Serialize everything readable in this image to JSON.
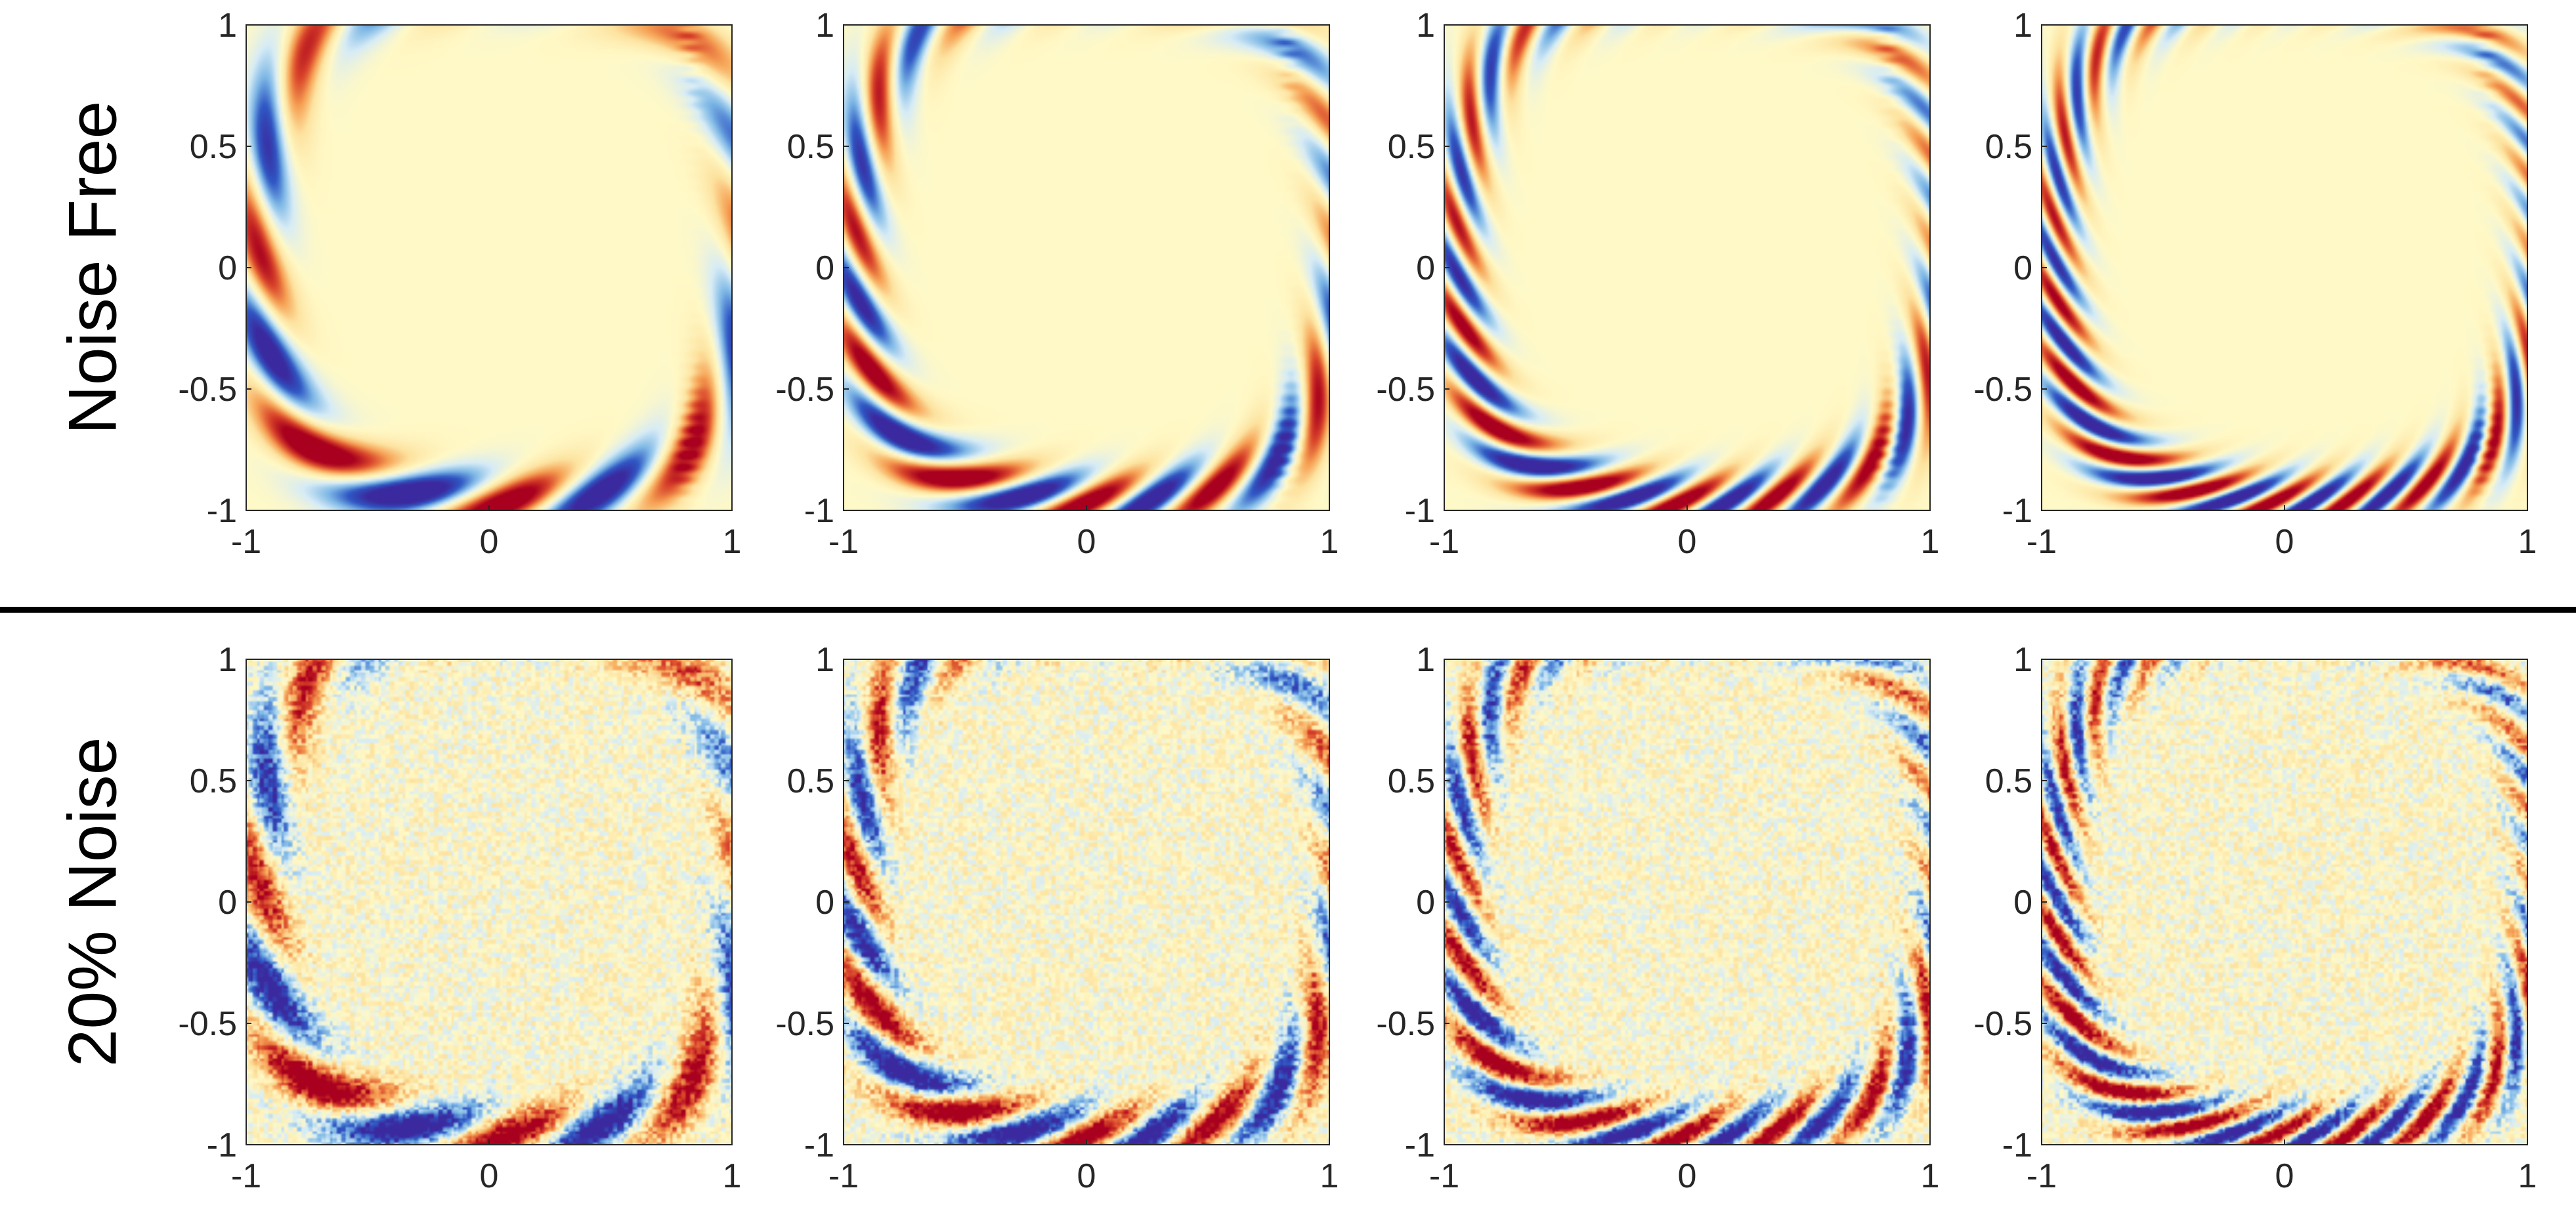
{
  "rows": [
    {
      "label": "Noise Free",
      "noise": 0.0
    },
    {
      "label": "20% Noise",
      "noise": 0.2
    }
  ],
  "colors": {
    "colormap": [
      "#3b2a9f",
      "#2f58c4",
      "#7eb8e6",
      "#d7ecf6",
      "#fff9c7",
      "#fde3a0",
      "#f6a255",
      "#d9452a",
      "#a8001e"
    ],
    "background": "#fff7c4",
    "divider": "#000000",
    "axis": "#262626"
  },
  "chart_data": [
    {
      "type": "heatmap",
      "row": "Noise Free",
      "panel": 1,
      "xlim": [
        -1,
        1
      ],
      "ylim": [
        -1,
        1
      ],
      "xticks": [
        -1,
        0,
        1
      ],
      "yticks": [
        -1,
        -0.5,
        0,
        0.5,
        1
      ],
      "xtick_labels": [
        "-1",
        "0",
        "1"
      ],
      "ytick_labels": [
        "-1",
        "-0.5",
        "0",
        "0.5",
        "1"
      ],
      "colorscale": "diverging blue-yellow-red",
      "field": {
        "wavenumber": 2,
        "strength": 1.0,
        "noise": 0.0
      },
      "grid": false
    },
    {
      "type": "heatmap",
      "row": "Noise Free",
      "panel": 2,
      "xlim": [
        -1,
        1
      ],
      "ylim": [
        -1,
        1
      ],
      "xticks": [
        -1,
        0,
        1
      ],
      "yticks": [
        -1,
        -0.5,
        0,
        0.5,
        1
      ],
      "xtick_labels": [
        "-1",
        "0",
        "1"
      ],
      "ytick_labels": [
        "-1",
        "-0.5",
        "0",
        "0.5",
        "1"
      ],
      "colorscale": "diverging blue-yellow-red",
      "field": {
        "wavenumber": 3,
        "strength": 1.0,
        "noise": 0.0
      },
      "grid": false
    },
    {
      "type": "heatmap",
      "row": "Noise Free",
      "panel": 3,
      "xlim": [
        -1,
        1
      ],
      "ylim": [
        -1,
        1
      ],
      "xticks": [
        -1,
        0,
        1
      ],
      "yticks": [
        -1,
        -0.5,
        0,
        0.5,
        1
      ],
      "xtick_labels": [
        "-1",
        "0",
        "1"
      ],
      "ytick_labels": [
        "-1",
        "-0.5",
        "0",
        "0.5",
        "1"
      ],
      "colorscale": "diverging blue-yellow-red",
      "field": {
        "wavenumber": 4,
        "strength": 1.0,
        "noise": 0.0
      },
      "grid": false
    },
    {
      "type": "heatmap",
      "row": "Noise Free",
      "panel": 4,
      "xlim": [
        -1,
        1
      ],
      "ylim": [
        -1,
        1
      ],
      "xticks": [
        -1,
        0,
        1
      ],
      "yticks": [
        -1,
        -0.5,
        0,
        0.5,
        1
      ],
      "xtick_labels": [
        "-1",
        "0",
        "1"
      ],
      "ytick_labels": [
        "-1",
        "-0.5",
        "0",
        "0.5",
        "1"
      ],
      "colorscale": "diverging blue-yellow-red",
      "field": {
        "wavenumber": 5,
        "strength": 1.0,
        "noise": 0.0
      },
      "grid": false
    },
    {
      "type": "heatmap",
      "row": "20% Noise",
      "panel": 1,
      "xlim": [
        -1,
        1
      ],
      "ylim": [
        -1,
        1
      ],
      "xticks": [
        -1,
        0,
        1
      ],
      "yticks": [
        -1,
        -0.5,
        0,
        0.5,
        1
      ],
      "xtick_labels": [
        "-1",
        "0",
        "1"
      ],
      "ytick_labels": [
        "-1",
        "-0.5",
        "0",
        "0.5",
        "1"
      ],
      "colorscale": "diverging blue-yellow-red",
      "field": {
        "wavenumber": 2,
        "strength": 1.0,
        "noise": 0.2
      },
      "grid": false
    },
    {
      "type": "heatmap",
      "row": "20% Noise",
      "panel": 2,
      "xlim": [
        -1,
        1
      ],
      "ylim": [
        -1,
        1
      ],
      "xticks": [
        -1,
        0,
        1
      ],
      "yticks": [
        -1,
        -0.5,
        0,
        0.5,
        1
      ],
      "xtick_labels": [
        "-1",
        "0",
        "1"
      ],
      "ytick_labels": [
        "-1",
        "-0.5",
        "0",
        "0.5",
        "1"
      ],
      "colorscale": "diverging blue-yellow-red",
      "field": {
        "wavenumber": 3,
        "strength": 1.0,
        "noise": 0.2
      },
      "grid": false
    },
    {
      "type": "heatmap",
      "row": "20% Noise",
      "panel": 3,
      "xlim": [
        -1,
        1
      ],
      "ylim": [
        -1,
        1
      ],
      "xticks": [
        -1,
        0,
        1
      ],
      "yticks": [
        -1,
        -0.5,
        0,
        0.5,
        1
      ],
      "xtick_labels": [
        "-1",
        "0",
        "1"
      ],
      "ytick_labels": [
        "-1",
        "-0.5",
        "0",
        "0.5",
        "1"
      ],
      "colorscale": "diverging blue-yellow-red",
      "field": {
        "wavenumber": 4,
        "strength": 1.0,
        "noise": 0.2
      },
      "grid": false
    },
    {
      "type": "heatmap",
      "row": "20% Noise",
      "panel": 4,
      "xlim": [
        -1,
        1
      ],
      "ylim": [
        -1,
        1
      ],
      "xticks": [
        -1,
        0,
        1
      ],
      "yticks": [
        -1,
        -0.5,
        0,
        0.5,
        1
      ],
      "xtick_labels": [
        "-1",
        "0",
        "1"
      ],
      "ytick_labels": [
        "-1",
        "-0.5",
        "0",
        "0.5",
        "1"
      ],
      "colorscale": "diverging blue-yellow-red",
      "field": {
        "wavenumber": 5,
        "strength": 1.0,
        "noise": 0.2
      },
      "grid": false
    }
  ]
}
